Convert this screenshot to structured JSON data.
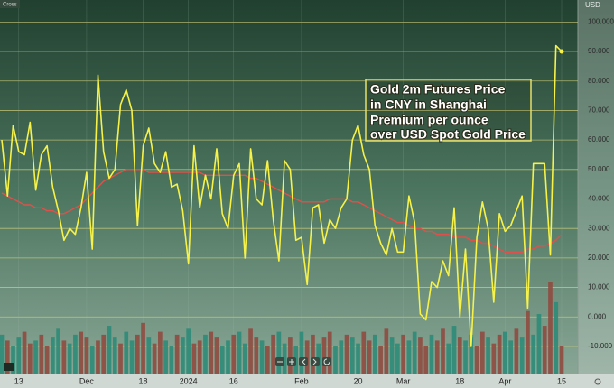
{
  "chart_data": {
    "type": "line",
    "mode_label": "Cross",
    "y_axis_label": "USD",
    "annotation": [
      "Gold 2m Futures Price",
      "in CNY in Shanghai",
      "Premium per ounce",
      "over USD Spot Gold Price"
    ],
    "categories": [
      null,
      null,
      null,
      "13",
      null,
      null,
      null,
      null,
      null,
      null,
      null,
      null,
      null,
      null,
      null,
      "Dec",
      null,
      null,
      null,
      null,
      null,
      null,
      null,
      null,
      null,
      "18",
      null,
      null,
      null,
      null,
      null,
      null,
      null,
      "2024",
      null,
      null,
      null,
      null,
      null,
      null,
      null,
      "16",
      null,
      null,
      null,
      null,
      null,
      null,
      null,
      null,
      null,
      null,
      null,
      "Feb",
      null,
      null,
      null,
      null,
      null,
      null,
      null,
      null,
      null,
      "20",
      null,
      null,
      null,
      null,
      null,
      null,
      null,
      "Mar",
      null,
      null,
      null,
      null,
      null,
      null,
      null,
      null,
      null,
      "18",
      null,
      null,
      null,
      null,
      null,
      null,
      null,
      "Apr",
      null,
      null,
      null,
      null,
      null,
      null,
      null,
      null,
      null,
      "15"
    ],
    "series": [
      {
        "color": "#f6f24a",
        "values": [
          60,
          41,
          65,
          56,
          55,
          66,
          43,
          55,
          58,
          44,
          36,
          26,
          30,
          28,
          37,
          49,
          23,
          82,
          56,
          47,
          50,
          72,
          77,
          70,
          31,
          58,
          64,
          52,
          49,
          56,
          44,
          45,
          36,
          18,
          58,
          37,
          48,
          40,
          57,
          35,
          30,
          48,
          52,
          20,
          57,
          40,
          38,
          53,
          33,
          19,
          53,
          50,
          26,
          27,
          11,
          37,
          38,
          25,
          33,
          30,
          37,
          40,
          60,
          65,
          55,
          50,
          31,
          25,
          21,
          30,
          22,
          22,
          41,
          32,
          1,
          -1,
          12,
          10,
          19,
          14,
          37,
          0,
          23,
          -10,
          27,
          39,
          30,
          5,
          35,
          29,
          31,
          36,
          41,
          3,
          52,
          52,
          52,
          21,
          92,
          90
        ]
      },
      {
        "color": "#e0504a",
        "values": [
          42,
          41,
          40,
          39,
          38,
          38,
          37,
          37,
          36,
          36,
          35,
          35,
          36,
          37,
          38,
          40,
          42,
          44,
          46,
          47,
          48,
          49,
          50,
          50,
          50,
          50,
          49,
          49,
          49,
          49,
          49,
          49,
          49,
          49,
          49,
          49,
          48,
          48,
          48,
          48,
          48,
          48,
          48,
          48,
          47,
          47,
          46,
          45,
          44,
          43,
          42,
          41,
          40,
          39,
          39,
          39,
          39,
          39,
          40,
          40,
          40,
          40,
          39,
          39,
          38,
          37,
          36,
          35,
          34,
          33,
          32,
          32,
          31,
          30,
          30,
          29,
          29,
          28,
          28,
          28,
          27,
          27,
          27,
          26,
          26,
          25,
          25,
          24,
          23,
          22,
          22,
          22,
          22,
          23,
          23,
          24,
          24,
          25,
          26,
          28
        ]
      }
    ],
    "bars": {
      "values": [
        -6,
        -8,
        -10,
        -7,
        -5,
        -9,
        -8,
        -6,
        -10,
        -7,
        -4,
        -8,
        -9,
        -6,
        -5,
        -7,
        -10,
        -8,
        -6,
        -3,
        -7,
        -9,
        -5,
        -8,
        -6,
        -2,
        -7,
        -9,
        -5,
        -8,
        -10,
        -6,
        -7,
        -4,
        -9,
        -8,
        -6,
        -5,
        -7,
        -10,
        -8,
        -6,
        -5,
        -9,
        -4,
        -7,
        -8,
        -10,
        -6,
        -5,
        -9,
        -7,
        -10,
        -5,
        -8,
        -6,
        -9,
        -7,
        -5,
        -10,
        -8,
        -6,
        -7,
        -9,
        -5,
        -8,
        -6,
        -10,
        -4,
        -7,
        -9,
        -6,
        -8,
        -5,
        -7,
        -10,
        -6,
        -8,
        -4,
        -9,
        -3,
        -7,
        -8,
        -6,
        -10,
        -5,
        -7,
        -9,
        -6,
        -5,
        -8,
        -4,
        -7,
        2,
        -6,
        1,
        -3,
        12,
        5,
        -10
      ],
      "colors": [
        "#2e8b78",
        "#8f4b40",
        "#2e8b78",
        "#2e8b78",
        "#8f4b40",
        "#8f4b40",
        "#2e8b78",
        "#8f4b40",
        "#8f4b40",
        "#2e8b78",
        "#2e8b78",
        "#8f4b40",
        "#2e8b78",
        "#2e8b78",
        "#8f4b40",
        "#8f4b40",
        "#2e8b78",
        "#8f4b40",
        "#8f4b40",
        "#2e8b78",
        "#2e8b78",
        "#8f4b40",
        "#2e8b78",
        "#2e8b78",
        "#8f4b40",
        "#8f4b40",
        "#2e8b78",
        "#8f4b40",
        "#8f4b40",
        "#2e8b78",
        "#2e8b78",
        "#8f4b40",
        "#2e8b78",
        "#2e8b78",
        "#8f4b40",
        "#8f4b40",
        "#2e8b78",
        "#8f4b40",
        "#8f4b40",
        "#2e8b78",
        "#2e8b78",
        "#8f4b40",
        "#2e8b78",
        "#2e8b78",
        "#8f4b40",
        "#8f4b40",
        "#2e8b78",
        "#8f4b40",
        "#8f4b40",
        "#2e8b78",
        "#2e8b78",
        "#8f4b40",
        "#2e8b78",
        "#2e8b78",
        "#8f4b40",
        "#8f4b40",
        "#2e8b78",
        "#8f4b40",
        "#8f4b40",
        "#2e8b78",
        "#2e8b78",
        "#8f4b40",
        "#2e8b78",
        "#2e8b78",
        "#8f4b40",
        "#8f4b40",
        "#2e8b78",
        "#8f4b40",
        "#8f4b40",
        "#2e8b78",
        "#2e8b78",
        "#8f4b40",
        "#2e8b78",
        "#2e8b78",
        "#8f4b40",
        "#8f4b40",
        "#2e8b78",
        "#8f4b40",
        "#8f4b40",
        "#2e8b78",
        "#2e8b78",
        "#8f4b40",
        "#2e8b78",
        "#2e8b78",
        "#8f4b40",
        "#8f4b40",
        "#2e8b78",
        "#8f4b40",
        "#8f4b40",
        "#2e8b78",
        "#2e8b78",
        "#8f4b40",
        "#2e8b78",
        "#8f4b40",
        "#2e8b78",
        "#2e8b78",
        "#8f4b40",
        "#8f4b40",
        "#2e8b78",
        "#8f4b40"
      ]
    },
    "ylim": [
      -19.5,
      105
    ],
    "yticks": [
      {
        "value": 100,
        "label": "100.000"
      },
      {
        "value": 90,
        "label": "90.000"
      },
      {
        "value": 80,
        "label": "80.000"
      },
      {
        "value": 70,
        "label": "70.000"
      },
      {
        "value": 60,
        "label": "60.000"
      },
      {
        "value": 50,
        "label": "50.000"
      },
      {
        "value": 40,
        "label": "40.000"
      },
      {
        "value": 30,
        "label": "30.000"
      },
      {
        "value": 20,
        "label": "20.000"
      },
      {
        "value": 10,
        "label": "10.000"
      },
      {
        "value": 0,
        "label": "0.000"
      },
      {
        "value": -10,
        "label": "-10.000"
      }
    ],
    "grid": true
  }
}
